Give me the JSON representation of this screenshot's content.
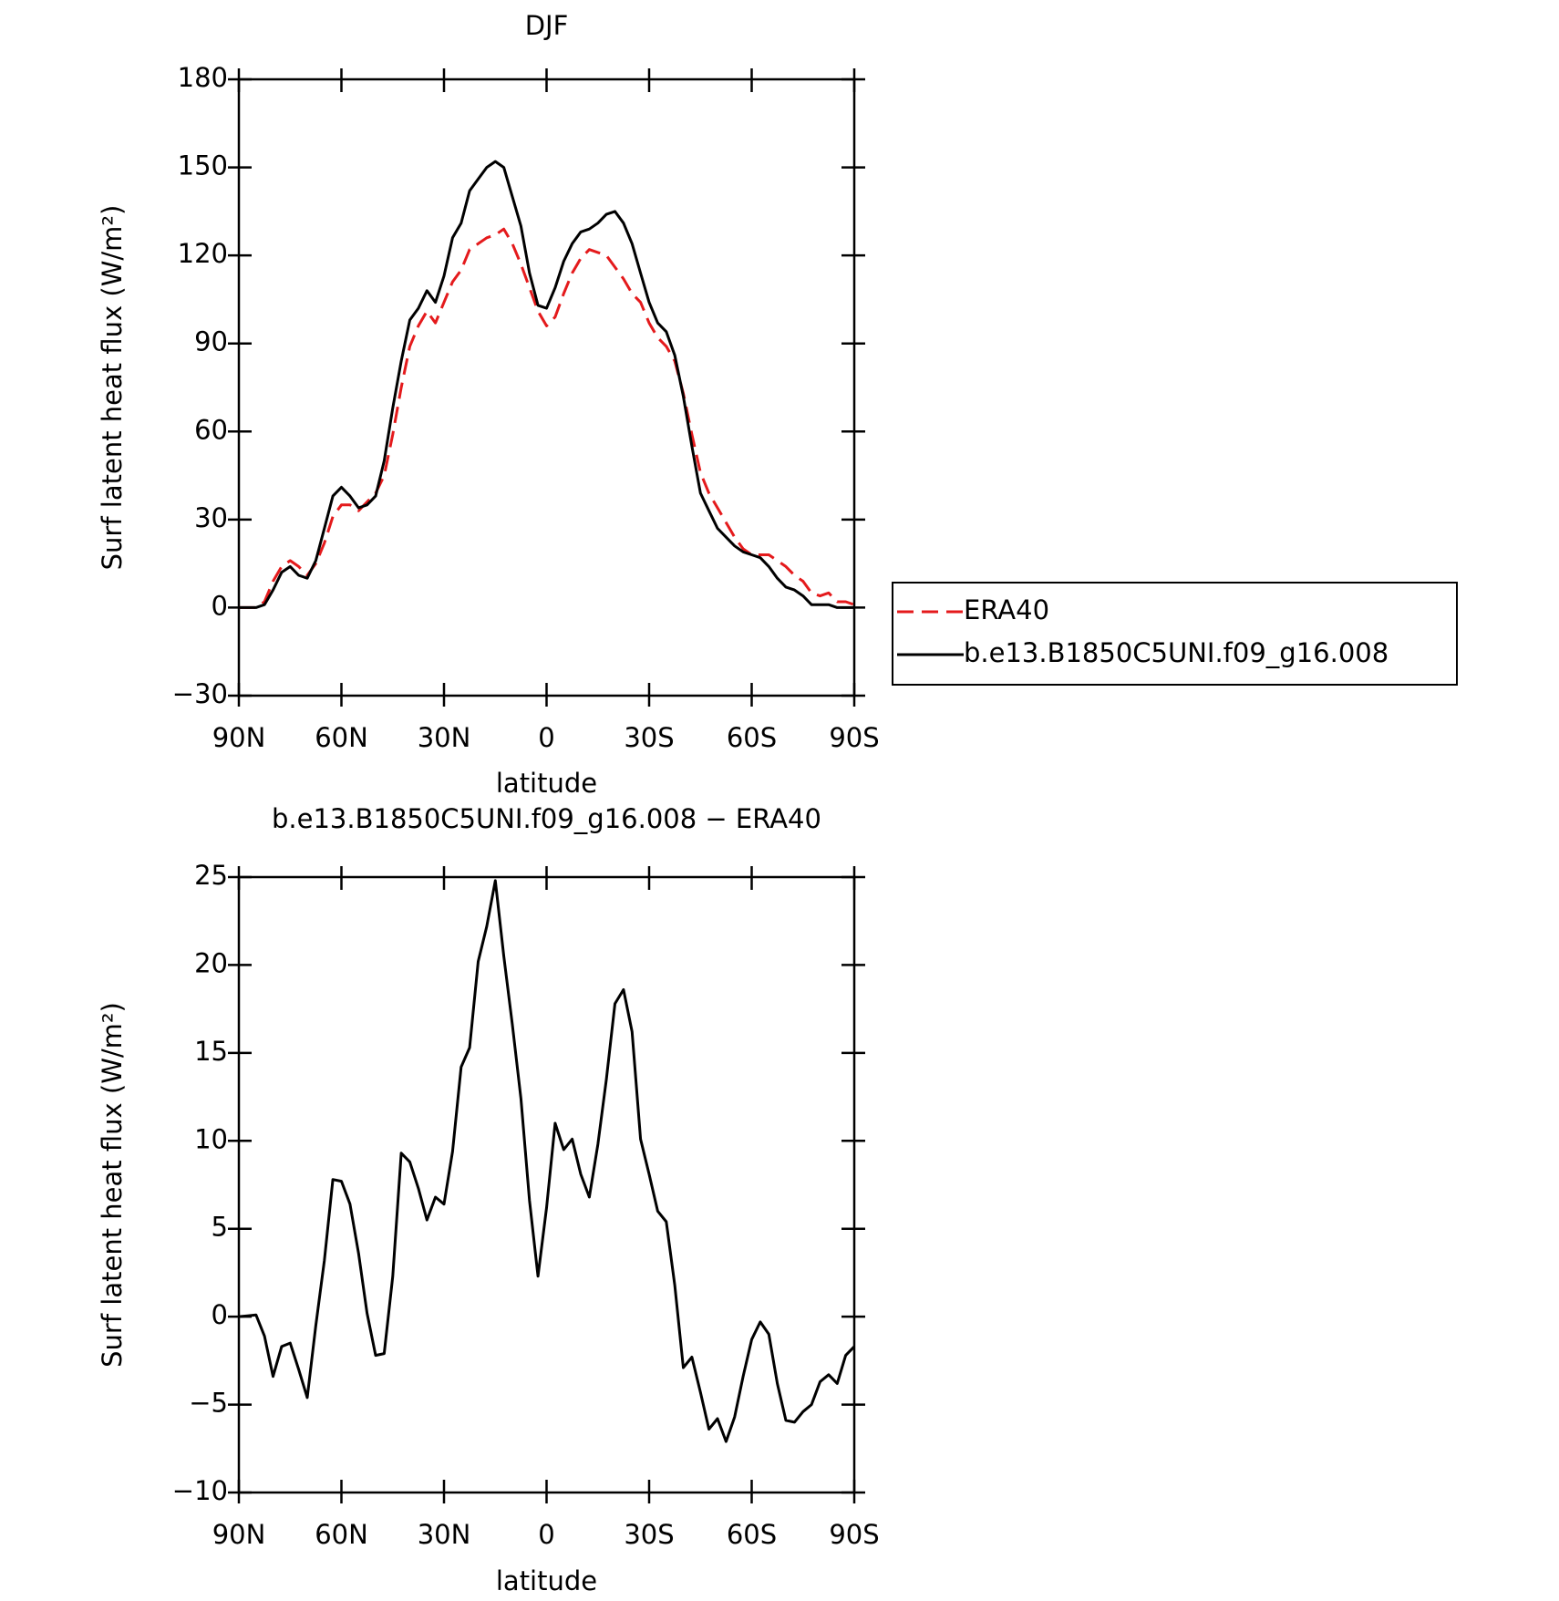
{
  "chart_data": [
    {
      "type": "line",
      "title": "DJF",
      "xlabel": "latitude",
      "ylabel": "Surf latent heat flux (W/m²)",
      "x": [
        90,
        87.5,
        85,
        82.5,
        80,
        77.5,
        75,
        72.5,
        70,
        67.5,
        65,
        62.5,
        60,
        57.5,
        55,
        52.5,
        50,
        47.5,
        45,
        42.5,
        40,
        37.5,
        35,
        32.5,
        30,
        27.5,
        25,
        22.5,
        20,
        17.5,
        15,
        12.5,
        10,
        7.5,
        5,
        2.5,
        0,
        -2.5,
        -5,
        -7.5,
        -10,
        -12.5,
        -15,
        -17.5,
        -20,
        -22.5,
        -25,
        -27.5,
        -30,
        -32.5,
        -35,
        -37.5,
        -40,
        -42.5,
        -45,
        -47.5,
        -50,
        -52.5,
        -55,
        -57.5,
        -60,
        -62.5,
        -65,
        -67.5,
        -70,
        -72.5,
        -75,
        -77.5,
        -80,
        -82.5,
        -85,
        -87.5,
        -90
      ],
      "series": [
        {
          "name": "ERA40",
          "color": "#e41a1c",
          "linestyle": "dashed",
          "values": [
            0,
            0,
            0,
            2,
            9,
            14,
            16,
            14,
            11,
            15,
            22,
            31,
            35,
            35,
            33,
            36,
            39,
            45,
            59,
            75,
            89,
            96,
            101,
            97,
            104,
            111,
            115,
            122,
            124,
            126,
            127,
            129,
            124,
            117,
            109,
            101,
            96,
            99,
            107,
            114,
            119,
            122,
            121,
            120,
            116,
            112,
            107,
            104,
            97,
            92,
            89,
            84,
            73,
            59,
            46,
            39,
            34,
            29,
            24,
            20,
            18,
            18,
            18,
            16,
            14,
            11,
            9,
            5,
            4,
            5,
            2,
            2,
            1
          ]
        },
        {
          "name": "b.e13.B1850C5UNI.f09_g16.008",
          "color": "#000000",
          "linestyle": "solid",
          "values": [
            0,
            0,
            0,
            1,
            6,
            12,
            14,
            11,
            10,
            16,
            27,
            38,
            41,
            38,
            34,
            35,
            38,
            50,
            68,
            84,
            98,
            102,
            108,
            104,
            113,
            126,
            131,
            142,
            146,
            150,
            152,
            150,
            140,
            130,
            114,
            103,
            102,
            109,
            118,
            124,
            128,
            129,
            131,
            134,
            135,
            131,
            124,
            114,
            104,
            97,
            94,
            86,
            72,
            55,
            39,
            33,
            27,
            24,
            21,
            19,
            18,
            17,
            14,
            10,
            7,
            6,
            4,
            1,
            1,
            1,
            0,
            0,
            0
          ]
        }
      ],
      "xlim": [
        90,
        -90
      ],
      "xticks": [
        {
          "value": 90,
          "label": "90N"
        },
        {
          "value": 60,
          "label": "60N"
        },
        {
          "value": 30,
          "label": "30N"
        },
        0,
        {
          "value": -30,
          "label": "30S"
        },
        {
          "value": -60,
          "label": "60S"
        },
        {
          "value": -90,
          "label": "90S"
        }
      ],
      "ylim": [
        -30,
        180
      ],
      "yticks": [
        {
          "value": -30,
          "label": "−30"
        },
        0,
        30,
        60,
        90,
        120,
        150,
        180
      ],
      "legend": "outside-right"
    },
    {
      "type": "line",
      "title": "b.e13.B1850C5UNI.f09_g16.008 − ERA40",
      "xlabel": "latitude",
      "ylabel": "Surf latent heat flux (W/m²)",
      "x": [
        90,
        87.5,
        85,
        82.5,
        80,
        77.5,
        75,
        72.5,
        70,
        67.5,
        65,
        62.5,
        60,
        57.5,
        55,
        52.5,
        50,
        47.5,
        45,
        42.5,
        40,
        37.5,
        35,
        32.5,
        30,
        27.5,
        25,
        22.5,
        20,
        17.5,
        15,
        12.5,
        10,
        7.5,
        5,
        2.5,
        0,
        -2.5,
        -5,
        -7.5,
        -10,
        -12.5,
        -15,
        -17.5,
        -20,
        -22.5,
        -25,
        -27.5,
        -30,
        -32.5,
        -35,
        -37.5,
        -40,
        -42.5,
        -45,
        -47.5,
        -50,
        -52.5,
        -55,
        -57.5,
        -60,
        -62.5,
        -65,
        -67.5,
        -70,
        -72.5,
        -75,
        -77.5,
        -80,
        -82.5,
        -85,
        -87.5,
        -90
      ],
      "color": "#000000",
      "values": [
        0,
        0.05,
        0.1,
        -1.1,
        -3.4,
        -1.7,
        -1.5,
        -3,
        -4.6,
        -0.5,
        3.2,
        7.8,
        7.7,
        6.4,
        3.6,
        0.2,
        -2.2,
        -2.1,
        2.3,
        9.3,
        8.8,
        7.3,
        5.5,
        6.8,
        6.4,
        9.4,
        14.2,
        15.3,
        20.2,
        22.2,
        24.8,
        20.5,
        16.6,
        12.4,
        6.6,
        2.3,
        6.2,
        11,
        9.5,
        10.1,
        8.1,
        6.8,
        9.8,
        13.5,
        17.8,
        18.6,
        16.2,
        10.1,
        8.1,
        6,
        5.4,
        1.8,
        -2.9,
        -2.3,
        -4.3,
        -6.4,
        -5.8,
        -7.1,
        -5.7,
        -3.4,
        -1.3,
        -0.3,
        -1,
        -3.8,
        -5.9,
        -6,
        -5.4,
        -5,
        -3.7,
        -3.3,
        -3.8,
        -2.2,
        -1.7
      ],
      "xlim": [
        90,
        -90
      ],
      "xticks": [
        {
          "value": 90,
          "label": "90N"
        },
        {
          "value": 60,
          "label": "60N"
        },
        {
          "value": 30,
          "label": "30N"
        },
        0,
        {
          "value": -30,
          "label": "30S"
        },
        {
          "value": -60,
          "label": "60S"
        },
        {
          "value": -90,
          "label": "90S"
        }
      ],
      "ylim": [
        -10,
        25
      ],
      "yticks": [
        {
          "value": -10,
          "label": "−10"
        },
        {
          "value": -5,
          "label": "−5"
        },
        0,
        5,
        10,
        15,
        20,
        25
      ]
    }
  ]
}
